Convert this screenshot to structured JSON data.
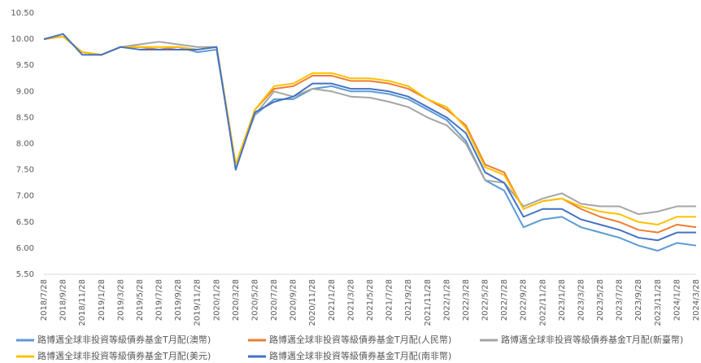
{
  "chart_data": {
    "type": "line",
    "categories": [
      "2018/7/28",
      "2018/9/28",
      "2018/11/28",
      "2019/1/28",
      "2019/3/28",
      "2019/5/28",
      "2019/7/28",
      "2019/9/28",
      "2019/11/28",
      "2020/1/28",
      "2020/3/28",
      "2020/5/28",
      "2020/7/28",
      "2020/9/28",
      "2020/11/28",
      "2021/1/28",
      "2021/3/28",
      "2021/5/28",
      "2021/7/28",
      "2021/9/28",
      "2021/11/28",
      "2022/1/28",
      "2022/3/28",
      "2022/5/28",
      "2022/7/28",
      "2022/9/28",
      "2022/11/28",
      "2023/1/28",
      "2023/3/28",
      "2023/5/28",
      "2023/7/28",
      "2023/9/28",
      "2023/11/28",
      "2024/1/28",
      "2024/3/28"
    ],
    "series": [
      {
        "name": "路博邁全球非投資等級債券基金T月配(澳幣)",
        "color": "#5b9bd5",
        "values": [
          10.0,
          10.05,
          9.75,
          9.7,
          9.85,
          9.85,
          9.8,
          9.85,
          9.75,
          9.8,
          7.6,
          8.55,
          8.85,
          8.85,
          9.05,
          9.1,
          9.0,
          9.0,
          8.95,
          8.85,
          8.65,
          8.45,
          8.05,
          7.3,
          7.1,
          6.4,
          6.55,
          6.6,
          6.4,
          6.3,
          6.2,
          6.05,
          5.95,
          6.1,
          6.05
        ]
      },
      {
        "name": "路博邁全球非投資等級債券基金T月配(人民幣)",
        "color": "#ed7d31",
        "values": [
          10.0,
          10.05,
          9.75,
          9.7,
          9.85,
          9.85,
          9.8,
          9.85,
          9.8,
          9.85,
          7.6,
          8.65,
          9.05,
          9.1,
          9.3,
          9.3,
          9.2,
          9.2,
          9.15,
          9.05,
          8.85,
          8.65,
          8.35,
          7.6,
          7.45,
          6.75,
          6.9,
          6.95,
          6.75,
          6.6,
          6.5,
          6.35,
          6.3,
          6.45,
          6.4
        ]
      },
      {
        "name": "路博邁全球非投資等級債券基金T月配(新臺幣)",
        "color": "#a5a5a5",
        "values": [
          10.0,
          10.05,
          9.75,
          9.7,
          9.85,
          9.9,
          9.95,
          9.9,
          9.85,
          9.85,
          7.6,
          8.55,
          9.0,
          8.9,
          9.05,
          9.0,
          8.9,
          8.88,
          8.8,
          8.7,
          8.5,
          8.35,
          8.0,
          7.3,
          7.25,
          6.8,
          6.95,
          7.05,
          6.85,
          6.8,
          6.8,
          6.65,
          6.7,
          6.8,
          6.8
        ]
      },
      {
        "name": "路博邁全球非投資等級債券基金T月配(美元)",
        "color": "#ffc000",
        "values": [
          10.0,
          10.05,
          9.75,
          9.7,
          9.85,
          9.85,
          9.85,
          9.85,
          9.8,
          9.85,
          7.6,
          8.65,
          9.1,
          9.15,
          9.35,
          9.35,
          9.25,
          9.25,
          9.2,
          9.1,
          8.85,
          8.7,
          8.3,
          7.55,
          7.4,
          6.75,
          6.9,
          6.95,
          6.8,
          6.7,
          6.65,
          6.5,
          6.45,
          6.6,
          6.6
        ]
      },
      {
        "name": "路博邁全球非投資等級債券基金T月配(南非幣)",
        "color": "#4472c4",
        "values": [
          10.0,
          10.1,
          9.7,
          9.7,
          9.85,
          9.8,
          9.8,
          9.8,
          9.8,
          9.85,
          7.5,
          8.6,
          8.8,
          8.9,
          9.15,
          9.15,
          9.05,
          9.05,
          9.0,
          8.9,
          8.7,
          8.5,
          8.2,
          7.45,
          7.25,
          6.6,
          6.75,
          6.75,
          6.55,
          6.45,
          6.35,
          6.2,
          6.15,
          6.3,
          6.3
        ]
      }
    ],
    "ylim": [
      5.5,
      10.5
    ],
    "yticks": [
      {
        "value": 5.5,
        "label": "5.50"
      },
      {
        "value": 6,
        "label": "6.00"
      },
      {
        "value": 6.5,
        "label": "6.50"
      },
      {
        "value": 7,
        "label": "7.00"
      },
      {
        "value": 7.5,
        "label": "7.50"
      },
      {
        "value": 8,
        "label": "8.00"
      },
      {
        "value": 8.5,
        "label": "8.50"
      },
      {
        "value": 9,
        "label": "9.00"
      },
      {
        "value": 9.5,
        "label": "9.50"
      },
      {
        "value": 10,
        "label": "10.00"
      },
      {
        "value": 10.5,
        "label": "10.50"
      }
    ],
    "grid": false,
    "legend": "bottom"
  }
}
